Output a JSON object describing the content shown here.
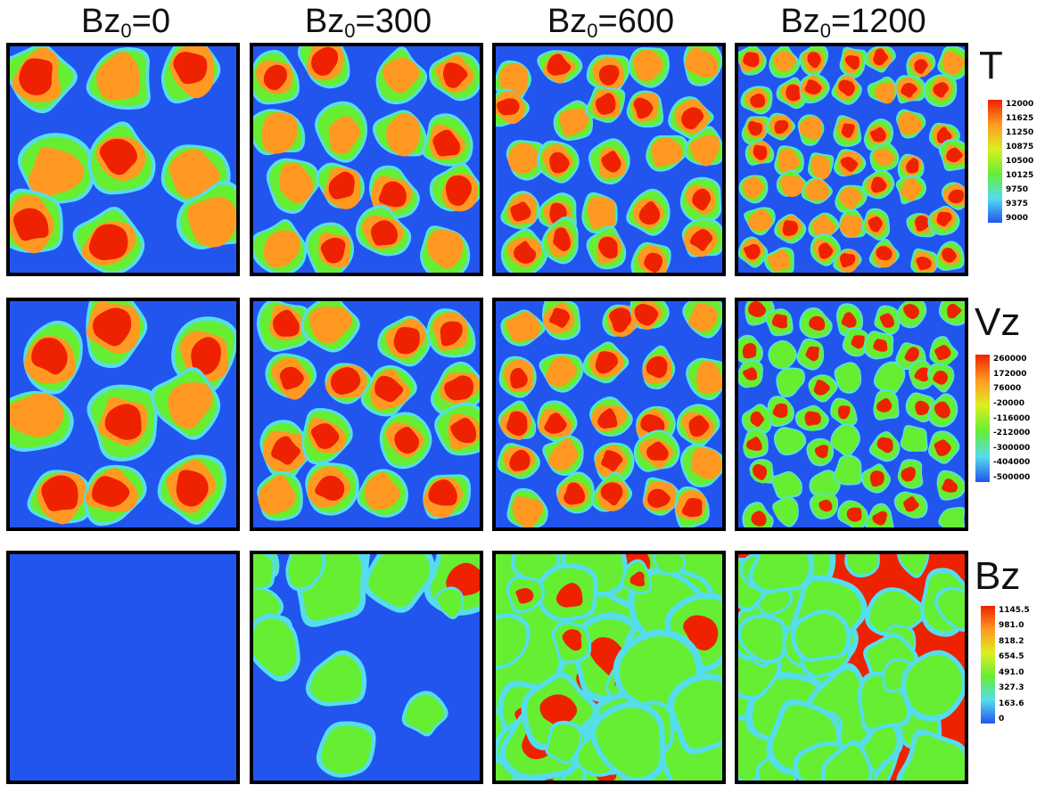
{
  "columns": [
    {
      "label_main": "Bz",
      "label_sub": "0",
      "label_rest": "=0"
    },
    {
      "label_main": "Bz",
      "label_sub": "0",
      "label_rest": "=300"
    },
    {
      "label_main": "Bz",
      "label_sub": "0",
      "label_rest": "=600"
    },
    {
      "label_main": "Bz",
      "label_sub": "0",
      "label_rest": "=1200"
    }
  ],
  "rows": [
    {
      "variable": "T",
      "ticks": [
        "12000",
        "11625",
        "11250",
        "10875",
        "10500",
        "10125",
        "9750",
        "9375",
        "9000"
      ]
    },
    {
      "variable": "Vz",
      "ticks": [
        "260000",
        "172000",
        "76000",
        "-20000",
        "-116000",
        "-212000",
        "-300000",
        "-404000",
        "-500000"
      ]
    },
    {
      "variable": "Bz",
      "ticks": [
        "1145.5",
        "981.0",
        "818.2",
        "654.5",
        "491.0",
        "327.3",
        "163.6",
        "0"
      ]
    }
  ],
  "colors": {
    "blue": "#2255ee",
    "cyan": "#55ddee",
    "green": "#66ee33",
    "yellow": "#ddee22",
    "orange": "#ff9922",
    "red": "#ee2200"
  }
}
